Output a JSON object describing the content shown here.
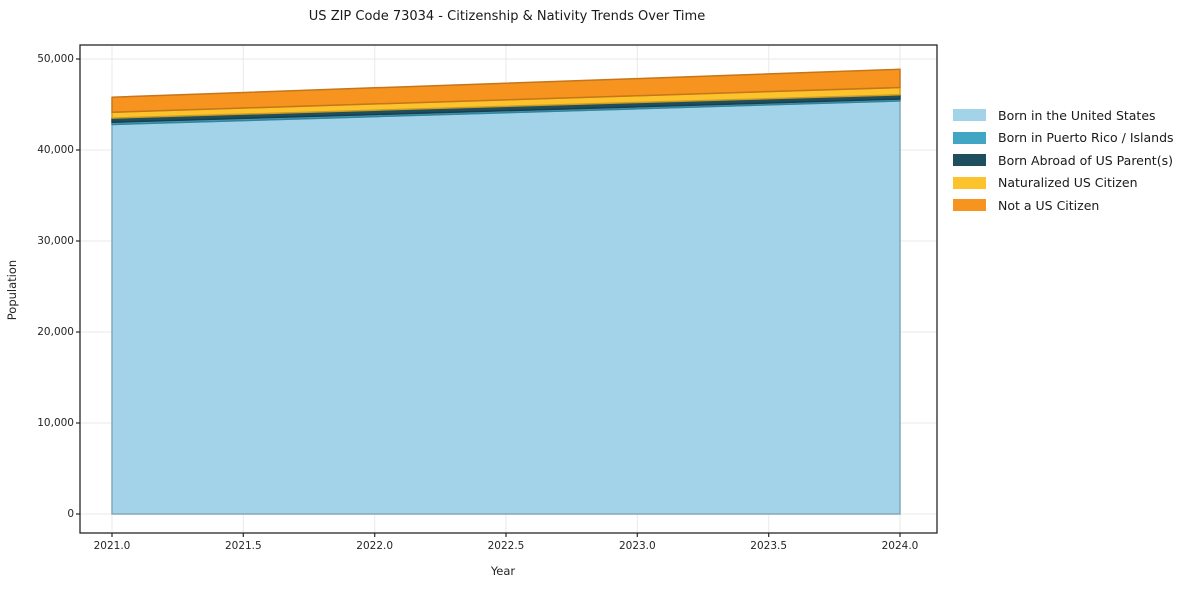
{
  "chart_data": {
    "type": "area",
    "stacked": true,
    "title": "US ZIP Code 73034 - Citizenship & Nativity Trends Over Time",
    "xlabel": "Year",
    "ylabel": "Population",
    "x": [
      2021,
      2022,
      2023,
      2024
    ],
    "series": [
      {
        "name": "Born in the United States",
        "color": "#a3d3e8",
        "values": [
          42800,
          43670,
          44530,
          45400
        ]
      },
      {
        "name": "Born in Puerto Rico / Islands",
        "color": "#41a5c4",
        "values": [
          250,
          235,
          220,
          200
        ]
      },
      {
        "name": "Born Abroad of US Parent(s)",
        "color": "#1f4e5f",
        "values": [
          460,
          465,
          470,
          470
        ]
      },
      {
        "name": "Naturalized US Citizen",
        "color": "#fcc32d",
        "values": [
          640,
          695,
          745,
          800
        ]
      },
      {
        "name": "Not a US Citizen",
        "color": "#f7941f",
        "values": [
          1650,
          1770,
          1885,
          2000
        ]
      }
    ],
    "xticks": [
      2021.0,
      2021.5,
      2022.0,
      2022.5,
      2023.0,
      2023.5,
      2024.0
    ],
    "xtick_labels": [
      "2021.0",
      "2021.5",
      "2022.0",
      "2022.5",
      "2023.0",
      "2023.5",
      "2024.0"
    ],
    "yticks": [
      0,
      10000,
      20000,
      30000,
      40000,
      50000
    ],
    "ytick_labels": [
      "0",
      "10,000",
      "20,000",
      "30,000",
      "40,000",
      "50,000"
    ],
    "ylim": [
      0,
      50000
    ],
    "grid": true,
    "legend_position": "outside-right",
    "colors": {
      "axis": "#262626",
      "grid": "#e9e9e9",
      "text": "#1a1a1a",
      "background": "#ffffff"
    }
  }
}
